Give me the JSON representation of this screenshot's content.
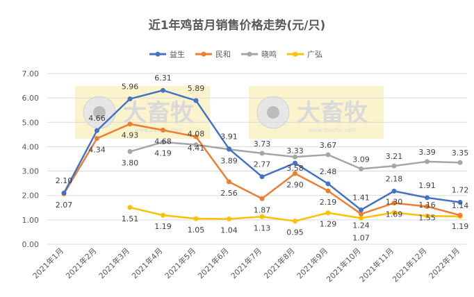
{
  "chart_data": {
    "type": "line",
    "title": "近1年鸡苗月销售价格走势(元/只)",
    "categories": [
      "2021年1月",
      "2021年2月",
      "2021年3月",
      "2021年4月",
      "2021年5月",
      "2021年6月",
      "2021年7月",
      "2021年8月",
      "2021年9月",
      "2021年10月",
      "2021年11月",
      "2021年12月",
      "2022年1月"
    ],
    "ylim": [
      0,
      7
    ],
    "yticks": [
      "0.00",
      "1.00",
      "2.00",
      "3.00",
      "4.00",
      "5.00",
      "6.00",
      "7.00"
    ],
    "grid": true,
    "legend_position": "top",
    "series": [
      {
        "name": "益生",
        "color": "#4472C4",
        "values": [
          2.1,
          4.66,
          5.96,
          6.31,
          5.89,
          3.91,
          2.77,
          3.33,
          2.48,
          1.41,
          2.18,
          1.91,
          1.72
        ]
      },
      {
        "name": "民和",
        "color": "#ED7D31",
        "values": [
          2.07,
          4.34,
          4.93,
          4.68,
          4.41,
          2.56,
          1.87,
          2.9,
          2.19,
          1.24,
          1.69,
          1.55,
          1.19
        ]
      },
      {
        "name": "晓鸣",
        "color": "#A5A5A5",
        "values": [
          null,
          null,
          3.8,
          4.19,
          4.08,
          3.89,
          3.73,
          3.58,
          3.67,
          3.09,
          3.21,
          3.39,
          3.35
        ]
      },
      {
        "name": "广弘",
        "color": "#FFC000",
        "values": [
          null,
          null,
          1.51,
          1.19,
          1.05,
          1.04,
          1.13,
          0.95,
          1.29,
          1.07,
          1.3,
          1.16,
          1.14
        ]
      }
    ]
  },
  "watermark": {
    "brand": "大畜牧",
    "url": "www.dxumu.com"
  }
}
